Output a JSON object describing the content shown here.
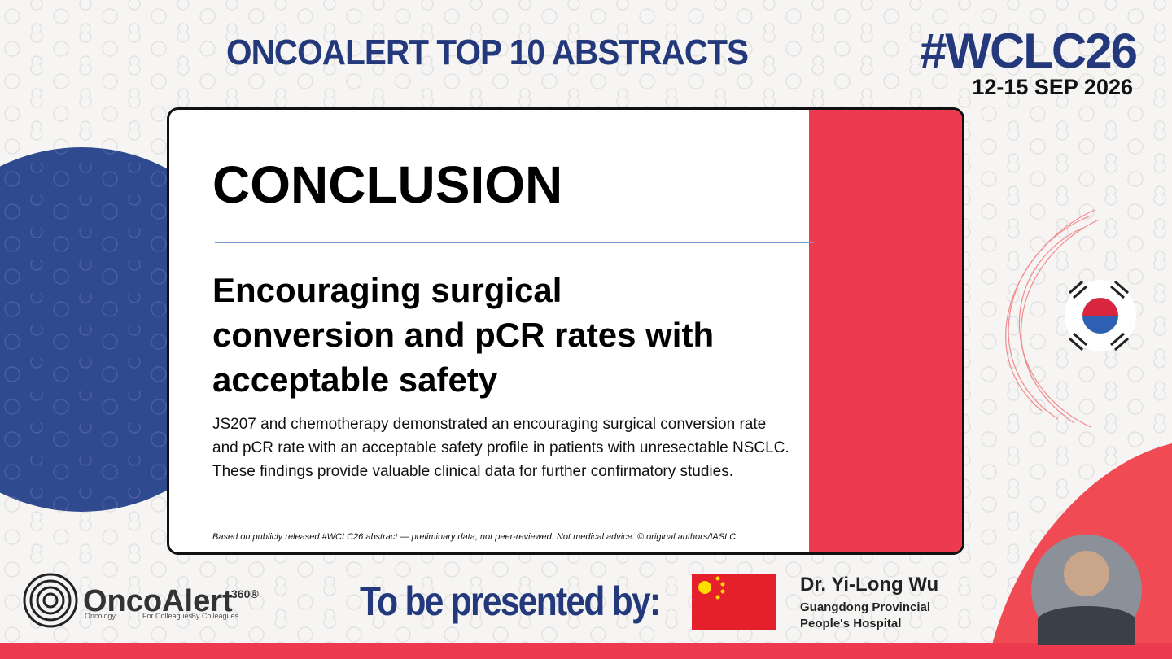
{
  "header": {
    "title": "ONCOALERT TOP 10 ABSTRACTS",
    "hashtag": "#WCLC26",
    "dates": "12-15 SEP 2026"
  },
  "card": {
    "heading": "CONCLUSION",
    "subheading": "Encouraging surgical conversion and pCR rates with acceptable safety",
    "body": "JS207 and chemotherapy demonstrated an encouraging surgical conversion rate and pCR rate with an acceptable safety profile in patients with unresectable NSCLC. These findings provide valuable clinical data for further confirmatory studies.",
    "disclaimer": "Based on publicly released #WCLC26 abstract — preliminary data, not peer-reviewed. Not medical advice. © original authors/IASLC."
  },
  "logo": {
    "name": "OncoAlert",
    "mark": "360®",
    "taglines": [
      "Oncology",
      "For Colleagues",
      "By Colleagues"
    ]
  },
  "presenter": {
    "label": "To be presented by:",
    "name": "Dr. Yi-Long Wu",
    "affiliation": [
      "Guangdong Provincial",
      "People's Hospital"
    ]
  }
}
